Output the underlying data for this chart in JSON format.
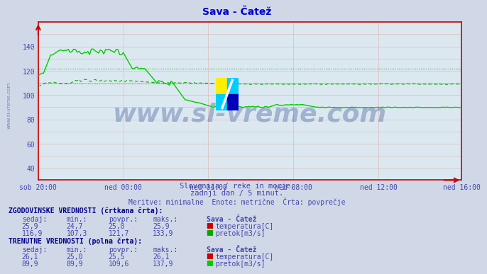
{
  "title": "Sava - Čatež",
  "title_color": "#0000cc",
  "bg_color": "#d0d8e8",
  "plot_bg_color": "#dce8f0",
  "text_color": "#4444aa",
  "subtitle1": "Slovenija / reke in morje.",
  "subtitle2": "zadnji dan / 5 minut.",
  "subtitle3": "Meritve: minimalne  Enote: metrične  Črta: povprečje",
  "x_ticks_labels": [
    "sob 20:00",
    "ned 00:00",
    "ned 04:00",
    "ned 08:00",
    "ned 12:00",
    "ned 16:00"
  ],
  "x_ticks_positions": [
    0,
    48,
    96,
    144,
    192,
    239
  ],
  "n_points": 240,
  "ylim": [
    30,
    160
  ],
  "yticks": [
    40,
    60,
    80,
    100,
    120,
    140
  ],
  "temp_dashed_color": "#cc0000",
  "temp_solid_color": "#cc0000",
  "flow_dashed_color": "#00aa00",
  "flow_solid_color": "#00cc00",
  "watermark_text": "www.si-vreme.com",
  "watermark_color": "#1a3a8a",
  "watermark_alpha": 0.3,
  "table_header1": "ZGODOVINSKE VREDNOSTI (črtkana črta):",
  "table_header2": "TRENUTNE VREDNOSTI (polna črta):",
  "table_col_headers": [
    "sedaj:",
    "min.:",
    "povpr.:",
    "maks.:",
    "Sava - Čatež"
  ],
  "hist_temp": [
    25.9,
    24.7,
    25.0,
    25.9
  ],
  "hist_flow": [
    116.9,
    107.3,
    121.7,
    133.9
  ],
  "curr_temp": [
    26.1,
    25.0,
    25.5,
    26.1
  ],
  "curr_flow": [
    89.9,
    89.9,
    109.6,
    137.9
  ],
  "temp_label": "temperatura[C]",
  "flow_label": "pretok[m3/s]",
  "hist_flow_avg": 121.7,
  "curr_flow_avg": 109.6,
  "hist_temp_avg": 25.0,
  "curr_temp_avg": 25.5
}
